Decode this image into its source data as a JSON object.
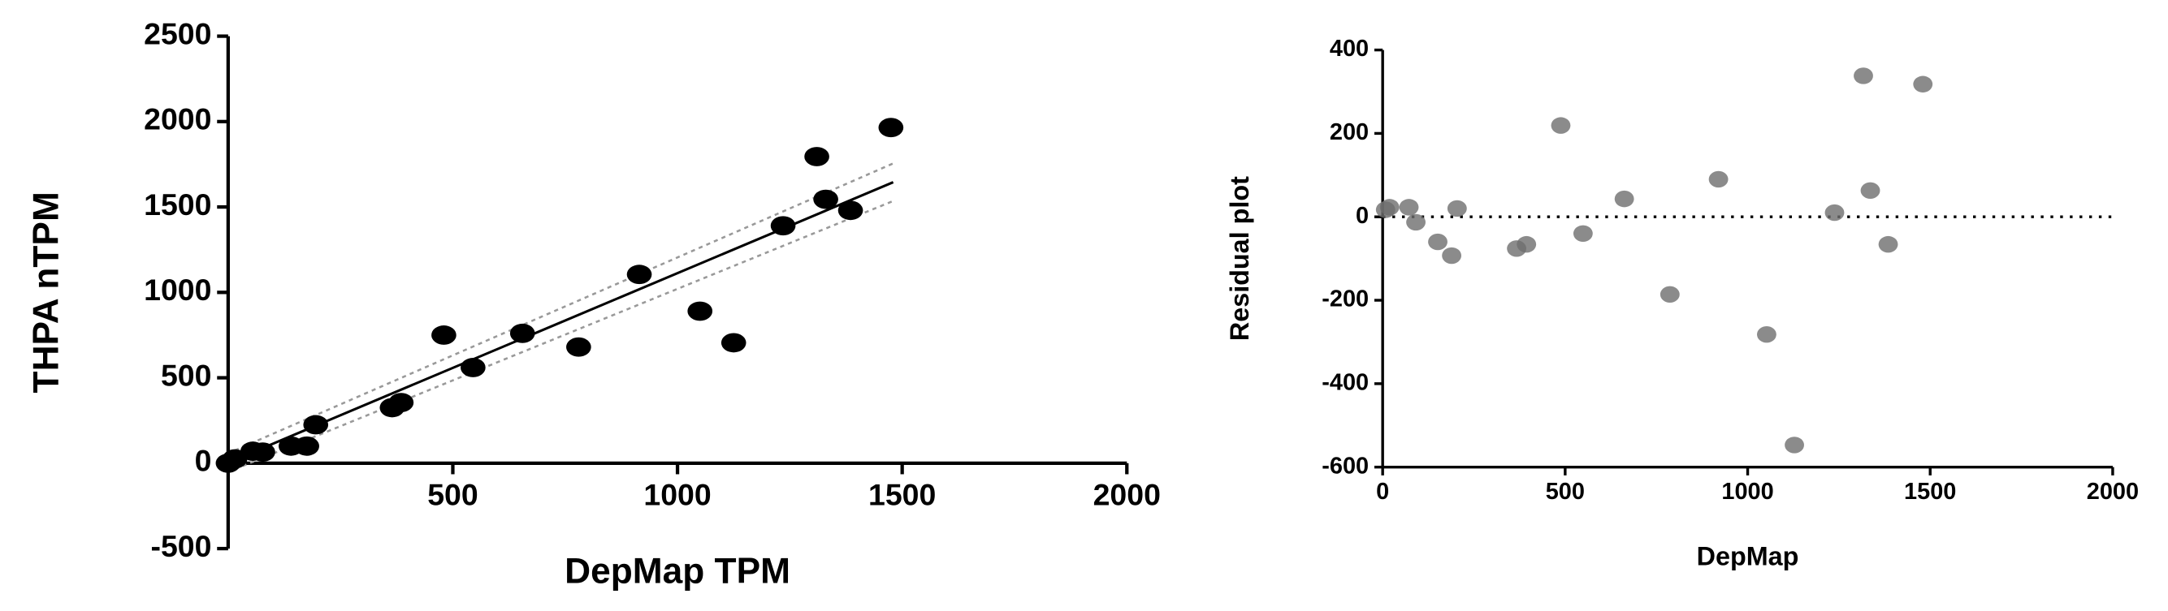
{
  "chart_data": [
    {
      "type": "scatter",
      "x_label": "DepMap TPM",
      "y_label": "THPA nTPM",
      "xlim": [
        0,
        2000
      ],
      "xticks": [
        500,
        1000,
        1500,
        2000
      ],
      "ylim": [
        -500,
        2500
      ],
      "yticks": [
        -500,
        0,
        500,
        1000,
        1500,
        2000,
        2500
      ],
      "x_axis_at": 0,
      "series": [
        {
          "color": "#000000",
          "x": [
            0,
            15,
            55,
            77,
            140,
            175,
            195,
            365,
            385,
            480,
            545,
            655,
            780,
            915,
            1050,
            1125,
            1235,
            1310,
            1330,
            1385,
            1475
          ],
          "values": [
            0,
            25,
            70,
            65,
            100,
            100,
            225,
            325,
            355,
            750,
            560,
            760,
            680,
            1105,
            890,
            705,
            1390,
            1795,
            1545,
            1480,
            1965
          ]
        }
      ],
      "lines": [
        {
          "color": "#000000",
          "dash": false,
          "x": [
            15,
            1480
          ],
          "values": [
            20,
            1645
          ]
        },
        {
          "color": "#999999",
          "dash": true,
          "x": [
            15,
            1480
          ],
          "values": [
            75,
            1755
          ]
        },
        {
          "color": "#999999",
          "dash": true,
          "x": [
            15,
            1480
          ],
          "values": [
            -35,
            1535
          ]
        }
      ]
    },
    {
      "type": "scatter",
      "x_label": "DepMap",
      "y_label": "Residual plot",
      "xlim": [
        0,
        2000
      ],
      "xticks": [
        0,
        500,
        1000,
        1500,
        2000
      ],
      "ylim": [
        -600,
        400
      ],
      "yticks": [
        -600,
        -400,
        -200,
        0,
        200,
        400
      ],
      "hline": 0,
      "series": [
        {
          "color": "#6e6e6e",
          "x": [
            8,
            19,
            72,
            91,
            151,
            189,
            204,
            367,
            394,
            488,
            549,
            662,
            787,
            920,
            1052,
            1128,
            1238,
            1317,
            1336,
            1385,
            1480
          ],
          "values": [
            17,
            23,
            23,
            -13,
            -60,
            -93,
            20,
            -76,
            -66,
            219,
            -40,
            43,
            -186,
            90,
            -282,
            -547,
            10,
            338,
            63,
            -66,
            318
          ]
        }
      ]
    }
  ]
}
